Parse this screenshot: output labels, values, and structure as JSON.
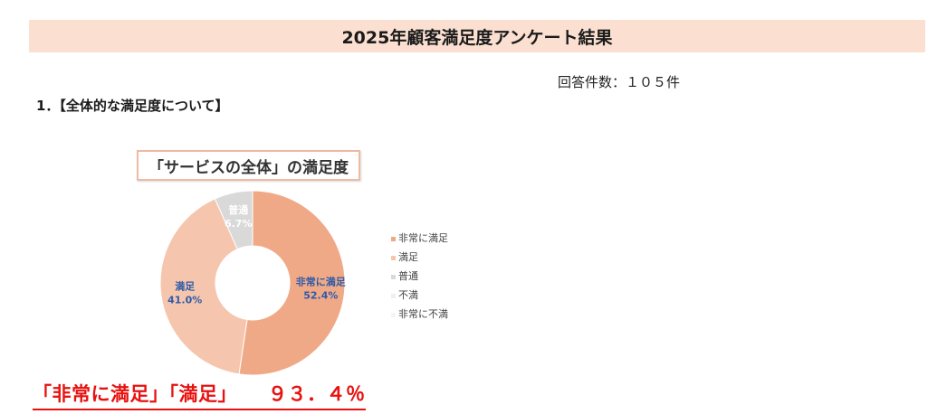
{
  "header": {
    "title": "2025年顧客満足度アンケート結果"
  },
  "response_count": "回答件数：１０５件",
  "section": {
    "heading": "1．【全体的な満足度について】"
  },
  "chart_data": {
    "type": "pie",
    "variant": "doughnut",
    "title": "「サービスの全体」の満足度",
    "categories": [
      "非常に満足",
      "満足",
      "普通",
      "不満",
      "非常に不満"
    ],
    "values": [
      52.4,
      41.0,
      6.7,
      0,
      0
    ],
    "value_labels": [
      "52.4%",
      "41.0%",
      "6.7%",
      "",
      ""
    ],
    "colors": [
      "#f0a987",
      "#f5c6ad",
      "#d9d9d9",
      "#efefef",
      "#f5f5f5"
    ],
    "label_colors": [
      "#2f5ba8",
      "#2f5ba8",
      "#ffffff",
      "#ffffff",
      "#ffffff"
    ],
    "legend_position": "right"
  },
  "summary": {
    "labels": "「非常に満足」「満足」",
    "value": "９３．４％"
  }
}
